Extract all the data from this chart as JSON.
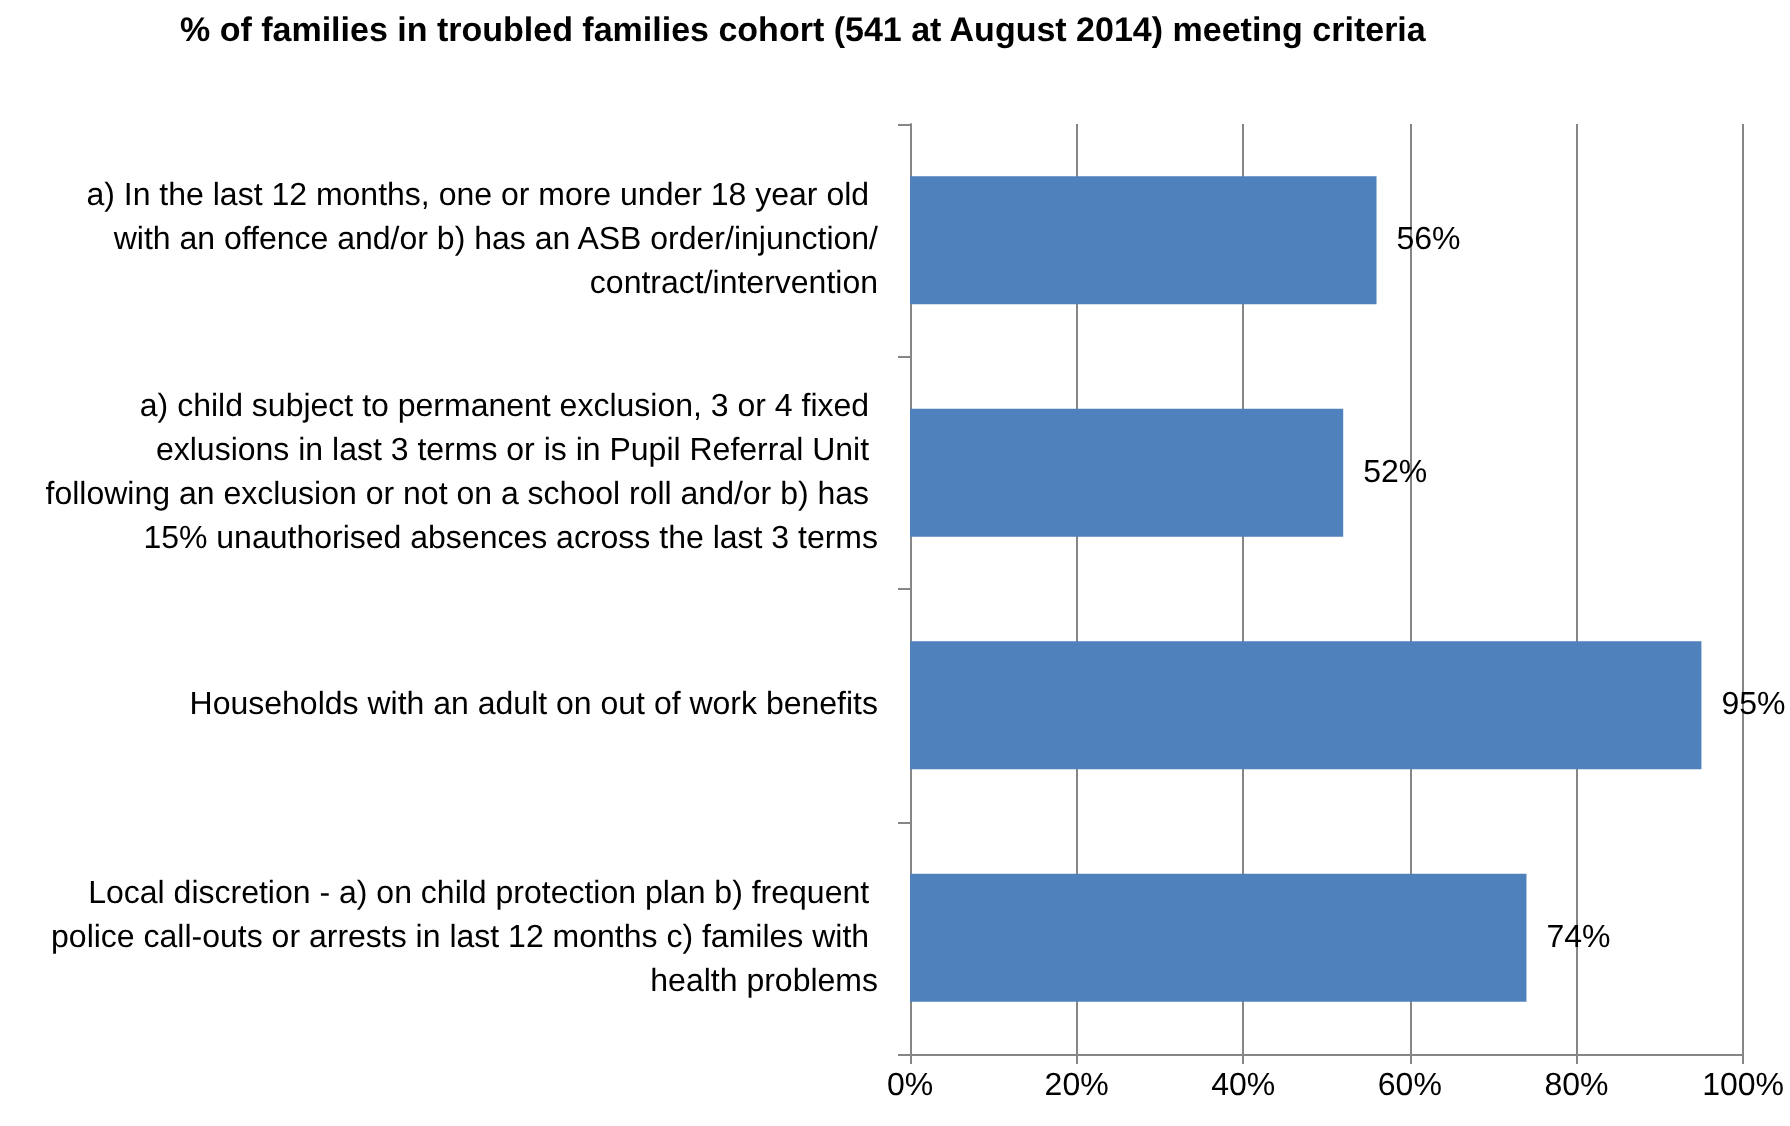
{
  "chart_data": {
    "type": "bar",
    "orientation": "horizontal",
    "title": "% of families in troubled families cohort (541 at August 2014) meeting criteria",
    "categories": [
      "a) In the last 12 months, one or more under 18 year old with an offence and/or b) has an ASB order/injunction/contract/intervention",
      "a) child subject to permanent exclusion, 3 or 4 fixed exlusions in last 3 terms or is in Pupil Referral Unit following an exclusion or not on a school roll and/or b) has 15% unauthorised absences across the last 3 terms",
      "Households with an adult on out of work benefits",
      "Local discretion - a) on child protection plan b) frequent police call-outs or arrests in last 12 months c) familes with health problems"
    ],
    "values": [
      56,
      52,
      95,
      74
    ],
    "color": "#4f81bd",
    "value_labels": [
      "56%",
      "52%",
      "95%",
      "74%"
    ],
    "xlim": [
      0,
      100
    ],
    "xticks": [
      {
        "value": 0,
        "label": "0%"
      },
      {
        "value": 20,
        "label": "20%"
      },
      {
        "value": 40,
        "label": "40%"
      },
      {
        "value": 60,
        "label": "60%"
      },
      {
        "value": 80,
        "label": "80%"
      },
      {
        "value": 100,
        "label": "100%"
      }
    ],
    "grid": "x"
  }
}
